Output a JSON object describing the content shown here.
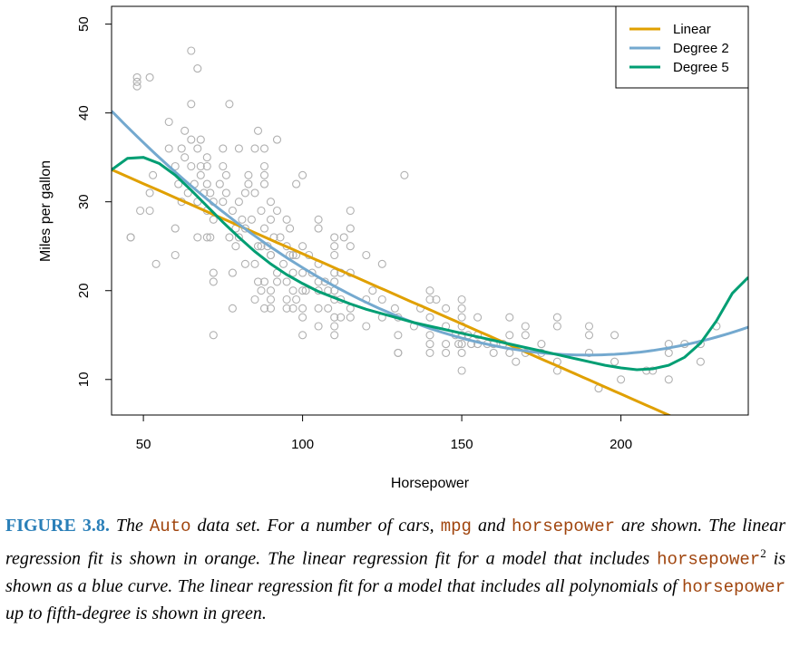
{
  "chart_data": {
    "type": "scatter",
    "xlabel": "Horsepower",
    "ylabel": "Miles per gallon",
    "xlim": [
      40,
      240
    ],
    "ylim": [
      6,
      52
    ],
    "xticks": [
      50,
      100,
      150,
      200
    ],
    "yticks": [
      10,
      20,
      30,
      40,
      50
    ],
    "grid": false,
    "legend_position": "top-right",
    "legend": [
      {
        "name": "Linear",
        "color": "#e0a000"
      },
      {
        "name": "Degree 2",
        "color": "#74a9cf"
      },
      {
        "name": "Degree 5",
        "color": "#009e73"
      }
    ],
    "point_color": "#b0b0b0",
    "points": [
      [
        46,
        26
      ],
      [
        46,
        26
      ],
      [
        48,
        43
      ],
      [
        48,
        44
      ],
      [
        48,
        43.5
      ],
      [
        49,
        29
      ],
      [
        52,
        29
      ],
      [
        52,
        44
      ],
      [
        52,
        31
      ],
      [
        53,
        33
      ],
      [
        54,
        23
      ],
      [
        58,
        39
      ],
      [
        58,
        36
      ],
      [
        60,
        24
      ],
      [
        60,
        27
      ],
      [
        60,
        34
      ],
      [
        61,
        32
      ],
      [
        62,
        30
      ],
      [
        62,
        36
      ],
      [
        63,
        35
      ],
      [
        63,
        38
      ],
      [
        64,
        31
      ],
      [
        65,
        47
      ],
      [
        65,
        41
      ],
      [
        65,
        37
      ],
      [
        65,
        34
      ],
      [
        66,
        32
      ],
      [
        67,
        36
      ],
      [
        67,
        30
      ],
      [
        67,
        26
      ],
      [
        67,
        45
      ],
      [
        68,
        33
      ],
      [
        68,
        37
      ],
      [
        68,
        34
      ],
      [
        69,
        31
      ],
      [
        70,
        35
      ],
      [
        70,
        34
      ],
      [
        70,
        32
      ],
      [
        70,
        29
      ],
      [
        70,
        26
      ],
      [
        71,
        31
      ],
      [
        71,
        26
      ],
      [
        72,
        30
      ],
      [
        72,
        28
      ],
      [
        72,
        22
      ],
      [
        72,
        21
      ],
      [
        72,
        15
      ],
      [
        74,
        32
      ],
      [
        75,
        30
      ],
      [
        75,
        36
      ],
      [
        75,
        34
      ],
      [
        76,
        33
      ],
      [
        76,
        31
      ],
      [
        77,
        41
      ],
      [
        77,
        26
      ],
      [
        78,
        22
      ],
      [
        78,
        18
      ],
      [
        78,
        29
      ],
      [
        79,
        25
      ],
      [
        79,
        27
      ],
      [
        80,
        30
      ],
      [
        80,
        36
      ],
      [
        80,
        26
      ],
      [
        81,
        28
      ],
      [
        82,
        31
      ],
      [
        82,
        27
      ],
      [
        82,
        23
      ],
      [
        83,
        32
      ],
      [
        83,
        33
      ],
      [
        84,
        28
      ],
      [
        85,
        36
      ],
      [
        85,
        31
      ],
      [
        85,
        23
      ],
      [
        85,
        19
      ],
      [
        86,
        38
      ],
      [
        86,
        25
      ],
      [
        86,
        21
      ],
      [
        87,
        29
      ],
      [
        87,
        25
      ],
      [
        87,
        20
      ],
      [
        88,
        27
      ],
      [
        88,
        21
      ],
      [
        88,
        18
      ],
      [
        88,
        32
      ],
      [
        88,
        33
      ],
      [
        88,
        36
      ],
      [
        88,
        34
      ],
      [
        89,
        25
      ],
      [
        90,
        28
      ],
      [
        90,
        24
      ],
      [
        90,
        20
      ],
      [
        90,
        19
      ],
      [
        90,
        18
      ],
      [
        90,
        24
      ],
      [
        90,
        30
      ],
      [
        91,
        26
      ],
      [
        92,
        29
      ],
      [
        92,
        22
      ],
      [
        92,
        21
      ],
      [
        92,
        37
      ],
      [
        93,
        26
      ],
      [
        94,
        23
      ],
      [
        95,
        28
      ],
      [
        95,
        25
      ],
      [
        95,
        21
      ],
      [
        95,
        19
      ],
      [
        95,
        18
      ],
      [
        96,
        27
      ],
      [
        96,
        24
      ],
      [
        97,
        24
      ],
      [
        97,
        22
      ],
      [
        97,
        20
      ],
      [
        97,
        18
      ],
      [
        98,
        32
      ],
      [
        98,
        24
      ],
      [
        98,
        19
      ],
      [
        100,
        25
      ],
      [
        100,
        22
      ],
      [
        100,
        20
      ],
      [
        100,
        18
      ],
      [
        100,
        17
      ],
      [
        100,
        15
      ],
      [
        100,
        33
      ],
      [
        101,
        20
      ],
      [
        102,
        24
      ],
      [
        103,
        22
      ],
      [
        105,
        27
      ],
      [
        105,
        28
      ],
      [
        105,
        23
      ],
      [
        105,
        21
      ],
      [
        105,
        20
      ],
      [
        105,
        18
      ],
      [
        105,
        16
      ],
      [
        107,
        21
      ],
      [
        108,
        18
      ],
      [
        108,
        20
      ],
      [
        110,
        25
      ],
      [
        110,
        22
      ],
      [
        110,
        20
      ],
      [
        110,
        17
      ],
      [
        110,
        16
      ],
      [
        110,
        15
      ],
      [
        110,
        19
      ],
      [
        110,
        24
      ],
      [
        110,
        21
      ],
      [
        110,
        26
      ],
      [
        112,
        17
      ],
      [
        112,
        19
      ],
      [
        112,
        22
      ],
      [
        113,
        26
      ],
      [
        115,
        25
      ],
      [
        115,
        27
      ],
      [
        115,
        29
      ],
      [
        115,
        22
      ],
      [
        115,
        18
      ],
      [
        115,
        17
      ],
      [
        120,
        19
      ],
      [
        120,
        16
      ],
      [
        120,
        24
      ],
      [
        122,
        20
      ],
      [
        125,
        19
      ],
      [
        125,
        17
      ],
      [
        125,
        23
      ],
      [
        129,
        18
      ],
      [
        130,
        17
      ],
      [
        130,
        15
      ],
      [
        130,
        13
      ],
      [
        130,
        13
      ],
      [
        132,
        33
      ],
      [
        135,
        16
      ],
      [
        137,
        18
      ],
      [
        140,
        19
      ],
      [
        140,
        17
      ],
      [
        140,
        15
      ],
      [
        140,
        14
      ],
      [
        140,
        20
      ],
      [
        140,
        13
      ],
      [
        142,
        19
      ],
      [
        145,
        18
      ],
      [
        145,
        16
      ],
      [
        145,
        14
      ],
      [
        145,
        13
      ],
      [
        148,
        15
      ],
      [
        149,
        14
      ],
      [
        150,
        17
      ],
      [
        150,
        16
      ],
      [
        150,
        15
      ],
      [
        150,
        14
      ],
      [
        150,
        13
      ],
      [
        150,
        18
      ],
      [
        150,
        19
      ],
      [
        150,
        11
      ],
      [
        152,
        15
      ],
      [
        153,
        14
      ],
      [
        155,
        17
      ],
      [
        155,
        15
      ],
      [
        155,
        14
      ],
      [
        158,
        14
      ],
      [
        160,
        13
      ],
      [
        160,
        14
      ],
      [
        163,
        14
      ],
      [
        165,
        17
      ],
      [
        165,
        15
      ],
      [
        165,
        13
      ],
      [
        167,
        12
      ],
      [
        170,
        16
      ],
      [
        170,
        15
      ],
      [
        170,
        13
      ],
      [
        175,
        14
      ],
      [
        175,
        13
      ],
      [
        180,
        12
      ],
      [
        180,
        11
      ],
      [
        180,
        16
      ],
      [
        180,
        17
      ],
      [
        190,
        16
      ],
      [
        190,
        15
      ],
      [
        190,
        13
      ],
      [
        193,
        9
      ],
      [
        198,
        15
      ],
      [
        198,
        12
      ],
      [
        200,
        10
      ],
      [
        208,
        11
      ],
      [
        210,
        11
      ],
      [
        215,
        10
      ],
      [
        215,
        13
      ],
      [
        215,
        14
      ],
      [
        220,
        14
      ],
      [
        225,
        12
      ],
      [
        225,
        14
      ],
      [
        230,
        16
      ]
    ],
    "fits": {
      "linear": {
        "name": "Linear",
        "coefficients": [
          39.9359,
          -0.157845
        ]
      },
      "degree2": {
        "name": "Degree 2",
        "coefficients": [
          56.9001,
          -0.46619,
          0.00123052
        ]
      },
      "degree5": {
        "name": "Degree 5",
        "curve": [
          [
            40,
            33.6
          ],
          [
            45,
            34.9
          ],
          [
            50,
            35.0
          ],
          [
            55,
            34.3
          ],
          [
            60,
            33.0
          ],
          [
            65,
            31.3
          ],
          [
            70,
            29.5
          ],
          [
            75,
            27.7
          ],
          [
            80,
            26.0
          ],
          [
            85,
            24.4
          ],
          [
            90,
            23.0
          ],
          [
            95,
            21.8
          ],
          [
            100,
            20.8
          ],
          [
            105,
            19.9
          ],
          [
            110,
            19.2
          ],
          [
            115,
            18.5
          ],
          [
            120,
            17.9
          ],
          [
            125,
            17.4
          ],
          [
            130,
            16.9
          ],
          [
            135,
            16.4
          ],
          [
            140,
            16.0
          ],
          [
            145,
            15.6
          ],
          [
            150,
            15.2
          ],
          [
            155,
            14.8
          ],
          [
            160,
            14.4
          ],
          [
            165,
            14.0
          ],
          [
            170,
            13.6
          ],
          [
            175,
            13.2
          ],
          [
            180,
            12.8
          ],
          [
            185,
            12.4
          ],
          [
            190,
            12.0
          ],
          [
            195,
            11.6
          ],
          [
            200,
            11.3
          ],
          [
            205,
            11.1
          ],
          [
            210,
            11.2
          ],
          [
            215,
            11.6
          ],
          [
            220,
            12.5
          ],
          [
            225,
            14.1
          ],
          [
            230,
            16.6
          ],
          [
            235,
            19.7
          ],
          [
            240,
            21.5
          ]
        ]
      }
    }
  },
  "caption": {
    "label": "FIGURE 3.8.",
    "t1": " The ",
    "c1": "Auto",
    "t2": " data set. For a number of cars, ",
    "c2": "mpg",
    "t3": " and ",
    "c3": "horsepower",
    "t4": " are shown. The linear regression fit is shown in orange. The linear regression fit for a model that includes ",
    "c4": "horsepower",
    "sup": "2",
    "t5": " is shown as a blue curve. The linear regression fit for a model that includes all polynomials of ",
    "c5": "horsepower",
    "t6": " up to fifth-degree is shown in green."
  }
}
